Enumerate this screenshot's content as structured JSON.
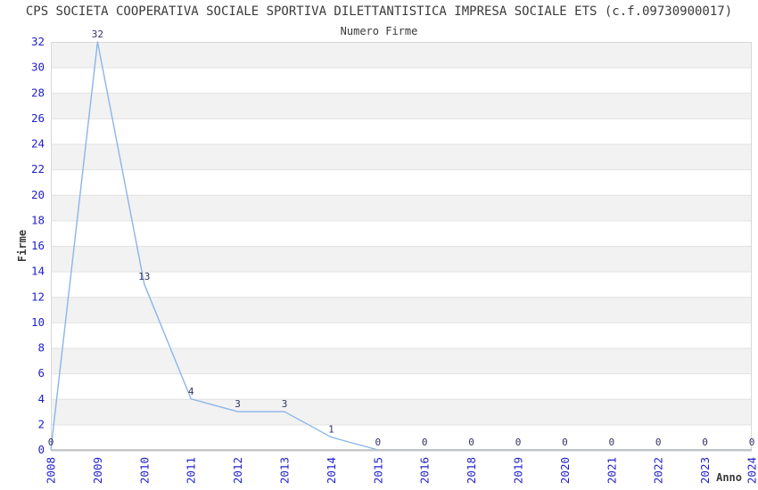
{
  "header": {
    "title": "CPS SOCIETA COOPERATIVA SOCIALE SPORTIVA DILETTANTISTICA IMPRESA SOCIALE ETS (c.f.09730900017)",
    "subtitle": "Numero Firme"
  },
  "chart_data": {
    "type": "line",
    "title": "Numero Firme",
    "xlabel": "Anno",
    "ylabel": "Firme",
    "categories": [
      "2008",
      "2009",
      "2010",
      "2011",
      "2012",
      "2013",
      "2014",
      "2015",
      "2016",
      "2018",
      "2019",
      "2020",
      "2021",
      "2022",
      "2023",
      "2024"
    ],
    "values": [
      0,
      32,
      13,
      4,
      3,
      3,
      1,
      0,
      0,
      0,
      0,
      0,
      0,
      0,
      0,
      0
    ],
    "ylim": [
      0,
      32
    ],
    "ytick_step": 2,
    "grid": true,
    "legend": "none",
    "band_fill": "alternating horizontal stripes",
    "colors": {
      "line": "#8ab6e8",
      "tick_label": "#1f1fcc",
      "data_label": "#333366",
      "band_gray": "#f2f2f2",
      "gridline": "#e2e2e2",
      "plot_border": "#d8d8d8",
      "axis_line": "#c4c4c4",
      "title_text": "#3a3a3a"
    }
  }
}
